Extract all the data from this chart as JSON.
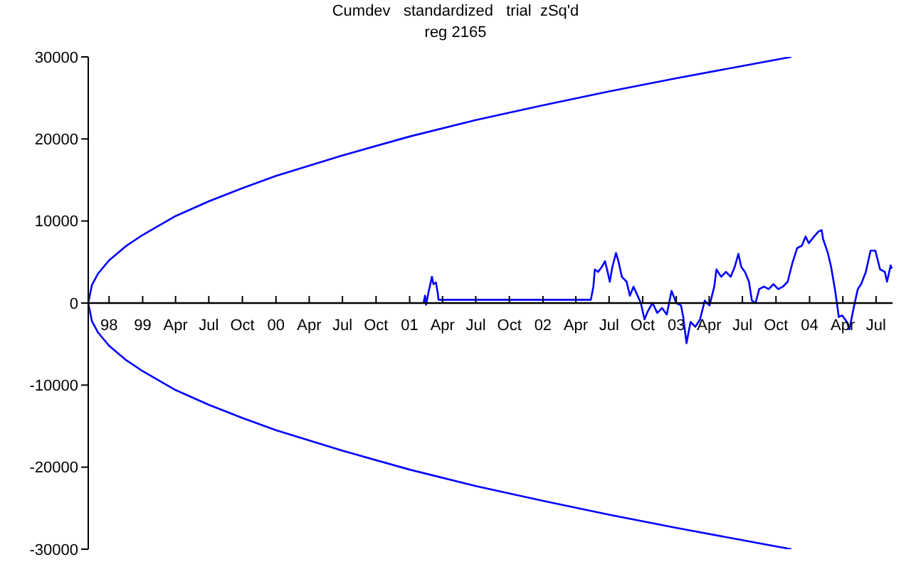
{
  "chart_data": {
    "type": "line",
    "title": "Cumdev   standardized   trial  zSq'd",
    "subtitle": "reg 2165",
    "marker": "none",
    "line_style": "solid",
    "xlim": [
      "1998-08-05",
      "2004-08-15"
    ],
    "xticks": [
      {
        "value": "1998-10-01",
        "label": "98"
      },
      {
        "value": "1999-01-01",
        "label": "99"
      },
      {
        "value": "1999-04-01",
        "label": "Apr"
      },
      {
        "value": "1999-07-01",
        "label": "Jul"
      },
      {
        "value": "1999-10-01",
        "label": "Oct"
      },
      {
        "value": "2000-01-01",
        "label": "00"
      },
      {
        "value": "2000-04-01",
        "label": "Apr"
      },
      {
        "value": "2000-07-01",
        "label": "Jul"
      },
      {
        "value": "2000-10-01",
        "label": "Oct"
      },
      {
        "value": "2001-01-01",
        "label": "01"
      },
      {
        "value": "2001-04-01",
        "label": "Apr"
      },
      {
        "value": "2001-07-01",
        "label": "Jul"
      },
      {
        "value": "2001-10-01",
        "label": "Oct"
      },
      {
        "value": "2002-01-01",
        "label": "02"
      },
      {
        "value": "2002-04-01",
        "label": "Apr"
      },
      {
        "value": "2002-07-01",
        "label": "Jul"
      },
      {
        "value": "2002-10-01",
        "label": "Oct"
      },
      {
        "value": "2003-01-01",
        "label": "03"
      },
      {
        "value": "2003-04-01",
        "label": "Apr"
      },
      {
        "value": "2003-07-01",
        "label": "Jul"
      },
      {
        "value": "2003-10-01",
        "label": "Oct"
      },
      {
        "value": "2004-01-01",
        "label": "04"
      },
      {
        "value": "2004-04-01",
        "label": "Apr"
      },
      {
        "value": "2004-07-01",
        "label": "Jul"
      }
    ],
    "ylim": [
      -30000,
      30000
    ],
    "yticks": [
      -30000,
      -20000,
      -10000,
      0,
      10000,
      20000,
      30000
    ],
    "series": [
      {
        "color": "#0000ff",
        "x": [
          "2003-11-12",
          "2003-07-01",
          "2003-01-01",
          "2002-07-01",
          "2002-01-01",
          "2001-07-01",
          "2001-01-01",
          "2000-07-01",
          "2000-01-01",
          "1999-10-01",
          "1999-07-01",
          "1999-04-01",
          "1999-01-01",
          "1998-11-15",
          "1998-10-01",
          "1998-09-01",
          "1998-08-15",
          "1998-08-05",
          "1998-08-15",
          "1998-09-01",
          "1998-10-01",
          "1998-11-15",
          "1999-01-01",
          "1999-04-01",
          "1999-07-01",
          "1999-10-01",
          "2000-01-01",
          "2000-07-01",
          "2001-01-01",
          "2001-07-01",
          "2002-01-01",
          "2002-07-01",
          "2003-01-01",
          "2003-07-01",
          "2003-11-12"
        ],
        "values": [
          30000,
          28900,
          27400,
          25800,
          24100,
          22300,
          20300,
          18000,
          15500,
          14000,
          12400,
          10600,
          8300,
          6900,
          5200,
          3600,
          2200,
          0,
          -2200,
          -3600,
          -5200,
          -6900,
          -8300,
          -10600,
          -12400,
          -14000,
          -15500,
          -18000,
          -20300,
          -22300,
          -24100,
          -25800,
          -27400,
          -28900,
          -30000
        ]
      },
      {
        "color": "#0000ff",
        "x": [
          "2001-02-08",
          "2001-02-12",
          "2001-02-15",
          "2001-02-21",
          "2001-03-03",
          "2001-03-07",
          "2001-03-14",
          "2001-03-19",
          "2001-03-21",
          "2002-05-12",
          "2002-05-19",
          "2002-05-23",
          "2002-06-01",
          "2002-06-11",
          "2002-06-20",
          "2002-06-27",
          "2002-07-03",
          "2002-07-10",
          "2002-07-20",
          "2002-07-26",
          "2002-08-05",
          "2002-08-18",
          "2002-08-27",
          "2002-09-06",
          "2002-09-17",
          "2002-09-26",
          "2002-10-06",
          "2002-10-15",
          "2002-10-28",
          "2002-11-10",
          "2002-11-23",
          "2002-12-06",
          "2002-12-19",
          "2003-01-01",
          "2003-01-14",
          "2003-01-20",
          "2003-01-29",
          "2003-02-09",
          "2003-02-22",
          "2003-03-07",
          "2003-03-20",
          "2003-04-02",
          "2003-04-15",
          "2003-04-21",
          "2003-05-04",
          "2003-05-17",
          "2003-05-30",
          "2003-06-10",
          "2003-06-20",
          "2003-06-28",
          "2003-07-08",
          "2003-07-19",
          "2003-07-27",
          "2003-08-06",
          "2003-08-16",
          "2003-08-29",
          "2003-09-11",
          "2003-09-24",
          "2003-10-07",
          "2003-10-20",
          "2003-11-02",
          "2003-11-15",
          "2003-11-28",
          "2003-12-11",
          "2003-12-21",
          "2003-12-30",
          "2004-01-13",
          "2004-01-25",
          "2004-02-03",
          "2004-02-07",
          "2004-02-20",
          "2004-02-29",
          "2004-03-11",
          "2004-03-21",
          "2004-03-30",
          "2004-04-12",
          "2004-04-19",
          "2004-05-02",
          "2004-05-12",
          "2004-05-21",
          "2004-06-03",
          "2004-06-16",
          "2004-06-29",
          "2004-07-12",
          "2004-07-25",
          "2004-07-31",
          "2004-08-10",
          "2004-08-13"
        ],
        "values": [
          0,
          900,
          -200,
          1200,
          3200,
          2300,
          2500,
          1200,
          400,
          400,
          2000,
          4100,
          3800,
          4400,
          5100,
          3800,
          2600,
          4400,
          6100,
          5200,
          3200,
          2600,
          900,
          2000,
          900,
          0,
          -2000,
          -1000,
          0,
          -1200,
          -600,
          -1400,
          1500,
          0,
          -300,
          -1700,
          -4900,
          -2300,
          -2900,
          -2000,
          300,
          -300,
          2000,
          4100,
          3200,
          3800,
          3200,
          4400,
          6000,
          4400,
          3800,
          2600,
          300,
          0,
          1700,
          2000,
          1700,
          2300,
          1700,
          2000,
          2600,
          4900,
          6700,
          7000,
          8100,
          7300,
          8100,
          8700,
          8900,
          7800,
          6100,
          4400,
          1500,
          -1700,
          -1500,
          -2300,
          -3200,
          -300,
          1700,
          2300,
          3800,
          6400,
          6400,
          4100,
          3800,
          2600,
          4600,
          4200
        ]
      }
    ]
  }
}
